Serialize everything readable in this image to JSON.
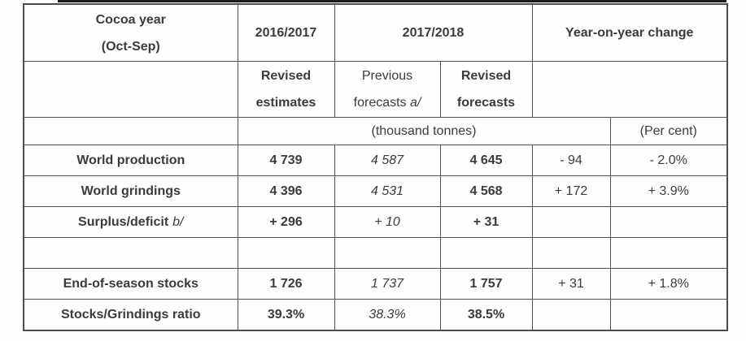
{
  "colors": {
    "text": "#3b3b3b",
    "border": "#555555",
    "top_rule": "#1c1c1c",
    "background": "#fdfdfd"
  },
  "table": {
    "header": {
      "cocoa_year_line1": "Cocoa year",
      "cocoa_year_line2": "(Oct-Sep)",
      "col_2016_2017": "2016/2017",
      "col_2017_2018": "2017/2018",
      "col_yoy": "Year-on-year change",
      "revised_estimates_line1": "Revised",
      "revised_estimates_line2": "estimates",
      "previous_forecasts_line1": "Previous",
      "previous_forecasts_line2": "forecasts",
      "previous_forecasts_note": "a/",
      "revised_forecasts_line1": "Revised",
      "revised_forecasts_line2": "forecasts",
      "units_tonnes": "(thousand tonnes)",
      "units_percent": "(Per cent)"
    },
    "rows": [
      {
        "label": "World production",
        "note": "",
        "revised_estimates": "4 739",
        "previous_forecasts": "4 587",
        "revised_forecasts": "4 645",
        "yoy_change": "- 94",
        "yoy_change_pct": "- 2.0%"
      },
      {
        "label": "World grindings",
        "note": "",
        "revised_estimates": "4 396",
        "previous_forecasts": "4 531",
        "revised_forecasts": "4 568",
        "yoy_change": "+ 172",
        "yoy_change_pct": "+ 3.9%"
      },
      {
        "label": "Surplus/deficit",
        "note": "b/",
        "revised_estimates": "+ 296",
        "previous_forecasts": "+ 10",
        "revised_forecasts": "+ 31",
        "yoy_change": "",
        "yoy_change_pct": ""
      },
      {
        "label": "",
        "note": "",
        "revised_estimates": "",
        "previous_forecasts": "",
        "revised_forecasts": "",
        "yoy_change": "",
        "yoy_change_pct": ""
      },
      {
        "label": "End-of-season stocks",
        "note": "",
        "revised_estimates": "1 726",
        "previous_forecasts": "1 737",
        "revised_forecasts": "1 757",
        "yoy_change": "+ 31",
        "yoy_change_pct": "+ 1.8%"
      },
      {
        "label": "Stocks/Grindings ratio",
        "note": "",
        "revised_estimates": "39.3%",
        "previous_forecasts": "38.3%",
        "revised_forecasts": "38.5%",
        "yoy_change": "",
        "yoy_change_pct": ""
      }
    ]
  }
}
